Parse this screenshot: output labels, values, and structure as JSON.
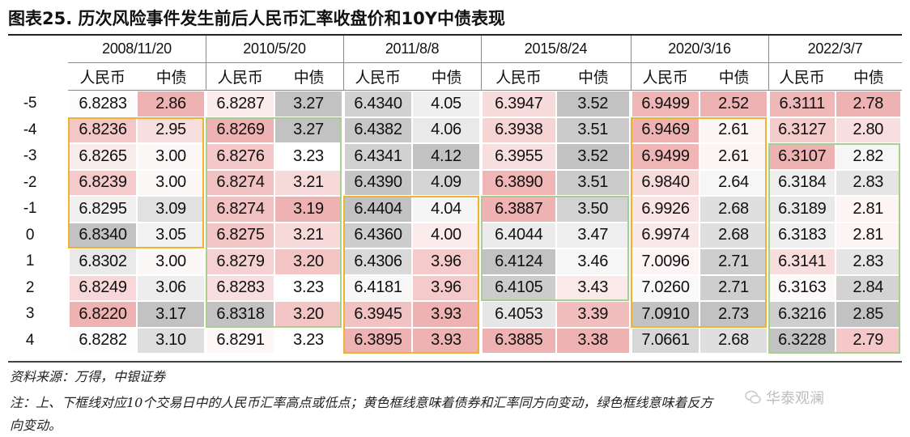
{
  "title": "图表25. 历次风险事件发生前后人民币汇率收盘价和10Y中债表现",
  "columns": [
    "人民币",
    "中债"
  ],
  "row_labels": [
    "-5",
    "-4",
    "-3",
    "-2",
    "-1",
    "0",
    "1",
    "2",
    "3",
    "4"
  ],
  "events": [
    {
      "date": "2008/11/20",
      "cny": [
        "6.8283",
        "6.8236",
        "6.8265",
        "6.8239",
        "6.8295",
        "6.8340",
        "6.8302",
        "6.8249",
        "6.8220",
        "6.8282"
      ],
      "bond": [
        "2.86",
        "2.95",
        "3.00",
        "3.00",
        "3.09",
        "3.05",
        "3.00",
        "3.06",
        "3.17",
        "3.10"
      ]
    },
    {
      "date": "2010/5/20",
      "cny": [
        "6.8287",
        "6.8269",
        "6.8276",
        "6.8274",
        "6.8274",
        "6.8275",
        "6.8279",
        "6.8283",
        "6.8318",
        "6.8291"
      ],
      "bond": [
        "3.27",
        "3.27",
        "3.23",
        "3.21",
        "3.19",
        "3.21",
        "3.20",
        "3.23",
        "3.20",
        "3.23"
      ]
    },
    {
      "date": "2011/8/8",
      "cny": [
        "6.4340",
        "6.4382",
        "6.4341",
        "6.4390",
        "6.4404",
        "6.4360",
        "6.4306",
        "6.4181",
        "6.3945",
        "6.3895"
      ],
      "bond": [
        "4.05",
        "4.06",
        "4.12",
        "4.09",
        "4.04",
        "4.00",
        "3.96",
        "3.96",
        "3.93",
        "3.93"
      ]
    },
    {
      "date": "2015/8/24",
      "cny": [
        "6.3947",
        "6.3938",
        "6.3955",
        "6.3890",
        "6.3887",
        "6.4044",
        "6.4124",
        "6.4105",
        "6.4053",
        "6.3885"
      ],
      "bond": [
        "3.52",
        "3.51",
        "3.52",
        "3.51",
        "3.50",
        "3.47",
        "3.46",
        "3.43",
        "3.39",
        "3.38"
      ]
    },
    {
      "date": "2020/3/16",
      "cny": [
        "6.9499",
        "6.9469",
        "6.9499",
        "6.9840",
        "6.9926",
        "6.9974",
        "7.0096",
        "7.0260",
        "7.0910",
        "7.0661"
      ],
      "bond": [
        "2.52",
        "2.61",
        "2.61",
        "2.64",
        "2.68",
        "2.68",
        "2.71",
        "2.71",
        "2.73",
        "2.68"
      ]
    },
    {
      "date": "2022/3/7",
      "cny": [
        "6.3111",
        "6.3127",
        "6.3107",
        "6.3184",
        "6.3189",
        "6.3183",
        "6.3141",
        "6.3163",
        "6.3216",
        "6.3228"
      ],
      "bond": [
        "2.78",
        "2.80",
        "2.82",
        "2.83",
        "2.81",
        "2.81",
        "2.83",
        "2.84",
        "2.85",
        "2.79"
      ]
    }
  ],
  "colors": {
    "red_max": "#efb2b2",
    "grey_max": "#c2c2c2",
    "yellow_box": "#f0b232",
    "green_box": "#a6d08c"
  },
  "source": "资料来源：万得，中银证券",
  "note_line1": "注：上、下框线对应10个交易日中的人民币汇率高点或低点；黄色框线意味着债券和汇率同方向变动，绿色框线意味着反方",
  "note_line2": "向变动。",
  "watermark": "华泰观澜"
}
